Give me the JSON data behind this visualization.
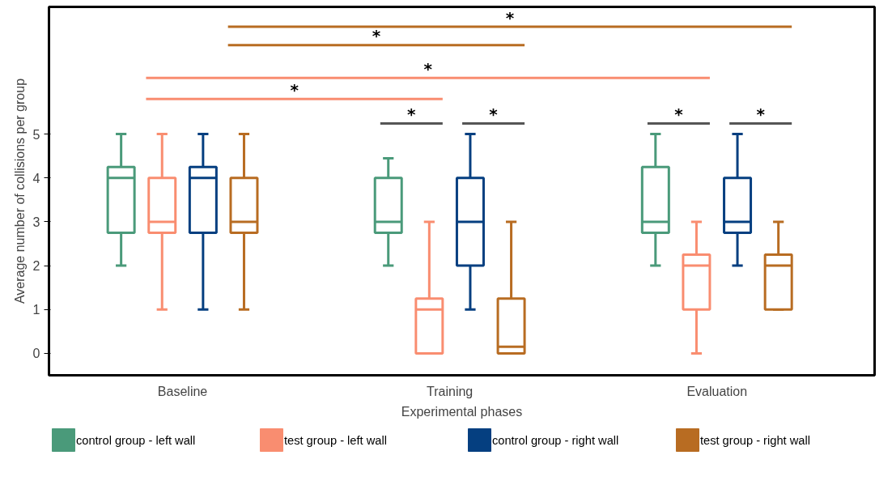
{
  "chart_data": {
    "type": "box",
    "xlabel": "Experimental phases",
    "ylabel": "Average number of collisions per group",
    "categories": [
      "Baseline",
      "Training",
      "Evaluation"
    ],
    "ylim": [
      -0.5,
      7.9
    ],
    "yticks": [
      0,
      1,
      2,
      3,
      4,
      5
    ],
    "grid": false,
    "legend": "bottom",
    "series": [
      {
        "name": "control group - left wall",
        "color": "#4a9a7a",
        "boxes": [
          {
            "low": 2,
            "q1": 2.75,
            "median": 4,
            "q3": 4.25,
            "high": 5
          },
          {
            "low": 2,
            "q1": 2.75,
            "median": 3,
            "q3": 4,
            "high": 4.45
          },
          {
            "low": 2,
            "q1": 2.75,
            "median": 3,
            "q3": 4.25,
            "high": 5
          }
        ]
      },
      {
        "name": "test group - left wall",
        "color": "#f98d70",
        "boxes": [
          {
            "low": 1,
            "q1": 2.75,
            "median": 3,
            "q3": 4,
            "high": 5
          },
          {
            "low": 0,
            "q1": 0,
            "median": 1,
            "q3": 1.25,
            "high": 3
          },
          {
            "low": 0,
            "q1": 1,
            "median": 2,
            "q3": 2.25,
            "high": 3
          }
        ]
      },
      {
        "name": "control group - right wall",
        "color": "#053f80",
        "boxes": [
          {
            "low": 1,
            "q1": 2.75,
            "median": 4,
            "q3": 4.25,
            "high": 5
          },
          {
            "low": 1,
            "q1": 2,
            "median": 3,
            "q3": 4,
            "high": 5
          },
          {
            "low": 2,
            "q1": 2.75,
            "median": 3,
            "q3": 4,
            "high": 5
          }
        ]
      },
      {
        "name": "test group - right wall",
        "color": "#b86c22",
        "boxes": [
          {
            "low": 1,
            "q1": 2.75,
            "median": 3,
            "q3": 4,
            "high": 5
          },
          {
            "low": 0,
            "q1": 0,
            "median": 0.15,
            "q3": 1.25,
            "high": 3
          },
          {
            "low": 1,
            "q1": 1,
            "median": 2,
            "q3": 2.25,
            "high": 3
          }
        ]
      }
    ],
    "annotations": [
      "*",
      "*",
      "*",
      "*",
      "*",
      "*",
      "*",
      "*"
    ]
  }
}
